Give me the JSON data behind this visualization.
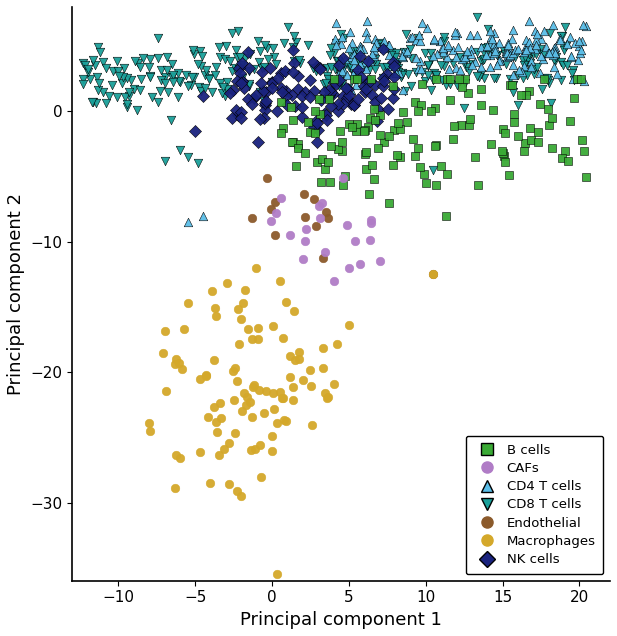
{
  "title": "",
  "xlabel": "Principal component 1",
  "ylabel": "Principal component 2",
  "xlim": [
    -13,
    22
  ],
  "ylim": [
    -36,
    8
  ],
  "xticks": [
    -10,
    -5,
    0,
    5,
    10,
    15,
    20
  ],
  "yticks": [
    -30,
    -20,
    -10,
    0
  ],
  "background_color": "#ffffff",
  "legend_loc": "lower right",
  "fontsize": 13,
  "cell_types": {
    "B cells": {
      "color": "#3aaa35",
      "marker": "s",
      "edgecolor": "black"
    },
    "CAFs": {
      "color": "#b07cc6",
      "marker": "o",
      "edgecolor": "#b07cc6"
    },
    "CD4 T cells": {
      "color": "#5bbee8",
      "marker": "^",
      "edgecolor": "black"
    },
    "CD8 T cells": {
      "color": "#1aa09a",
      "marker": "v",
      "edgecolor": "black"
    },
    "Endothelial": {
      "color": "#8b5a2b",
      "marker": "o",
      "edgecolor": "#8b5a2b"
    },
    "Macrophages": {
      "color": "#d4a82a",
      "marker": "o",
      "edgecolor": "#d4a82a"
    },
    "NK cells": {
      "color": "#1a237e",
      "marker": "D",
      "edgecolor": "black"
    }
  }
}
